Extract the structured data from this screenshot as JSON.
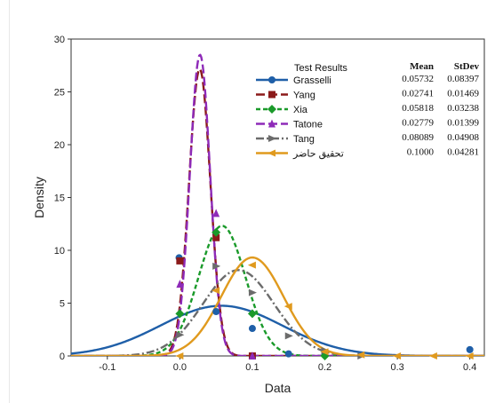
{
  "chart_data": {
    "type": "line",
    "xlabel": "Data",
    "ylabel": "Density",
    "xlim": [
      -0.15,
      0.42
    ],
    "ylim": [
      0,
      30
    ],
    "xticks": [
      "-0.1",
      "0.0",
      "0.1",
      "0.2",
      "0.3",
      "0.4"
    ],
    "yticks": [
      "0",
      "5",
      "10",
      "15",
      "20",
      "25",
      "30"
    ],
    "legend_title": "Test Results",
    "legend_position": "top-right",
    "mean_header": "Mean",
    "stdev_header": "StDev",
    "grid": false,
    "series": [
      {
        "name": "Grasselli",
        "mean": 0.05732,
        "stdev": 0.08397,
        "mean_label": "0.05732",
        "stdev_label": "0.08397",
        "color": "#1f5fa8",
        "dash": "solid",
        "marker": "circle",
        "points": [
          [
            -0.001,
            9.3
          ],
          [
            0.05,
            4.2
          ],
          [
            0.1,
            2.6
          ],
          [
            0.15,
            0.2
          ],
          [
            0.2,
            0.1
          ],
          [
            0.4,
            0.6
          ]
        ]
      },
      {
        "name": "Yang",
        "mean": 0.02741,
        "stdev": 0.01469,
        "mean_label": "0.02741",
        "stdev_label": "0.01469",
        "color": "#8b1a1a",
        "dash": "long-dash",
        "marker": "square",
        "points": [
          [
            0.0,
            9.0
          ],
          [
            0.05,
            11.2
          ],
          [
            0.1,
            0.0
          ]
        ]
      },
      {
        "name": "Xia",
        "mean": 0.05818,
        "stdev": 0.03238,
        "mean_label": "0.05818",
        "stdev_label": "0.03238",
        "color": "#1a9a2a",
        "dash": "short-dash",
        "marker": "diamond",
        "points": [
          [
            0.0,
            4.0
          ],
          [
            0.05,
            11.7
          ],
          [
            0.1,
            4.0
          ],
          [
            0.2,
            0.0
          ]
        ]
      },
      {
        "name": "Tatone",
        "mean": 0.02779,
        "stdev": 0.01399,
        "mean_label": "0.02779",
        "stdev_label": "0.01399",
        "color": "#8e2ab8",
        "dash": "long-dash",
        "marker": "triangle-up",
        "points": [
          [
            0.0,
            6.8
          ],
          [
            0.05,
            13.5
          ],
          [
            0.1,
            0.0
          ]
        ]
      },
      {
        "name": "Tang",
        "mean": 0.08089,
        "stdev": 0.04908,
        "mean_label": "0.08089",
        "stdev_label": "0.04908",
        "color": "#6b6b6b",
        "dash": "dash-dot",
        "marker": "triangle-right",
        "points": [
          [
            0.0,
            2.0
          ],
          [
            0.05,
            8.5
          ],
          [
            0.1,
            6.0
          ],
          [
            0.15,
            1.9
          ],
          [
            0.2,
            0.5
          ],
          [
            0.25,
            0.0
          ]
        ]
      },
      {
        "name": "تحقيق حاضر",
        "mean": 0.1,
        "stdev": 0.04281,
        "mean_label": "0.1000",
        "stdev_label": "0.04281",
        "color": "#e09a1e",
        "dash": "solid",
        "marker": "triangle-left",
        "points": [
          [
            0.0,
            0.0
          ],
          [
            0.05,
            6.2
          ],
          [
            0.1,
            8.6
          ],
          [
            0.15,
            4.7
          ],
          [
            0.2,
            0.4
          ],
          [
            0.25,
            0.1
          ],
          [
            0.3,
            0.0
          ],
          [
            0.35,
            0.0
          ],
          [
            0.4,
            0.0
          ]
        ]
      }
    ]
  }
}
